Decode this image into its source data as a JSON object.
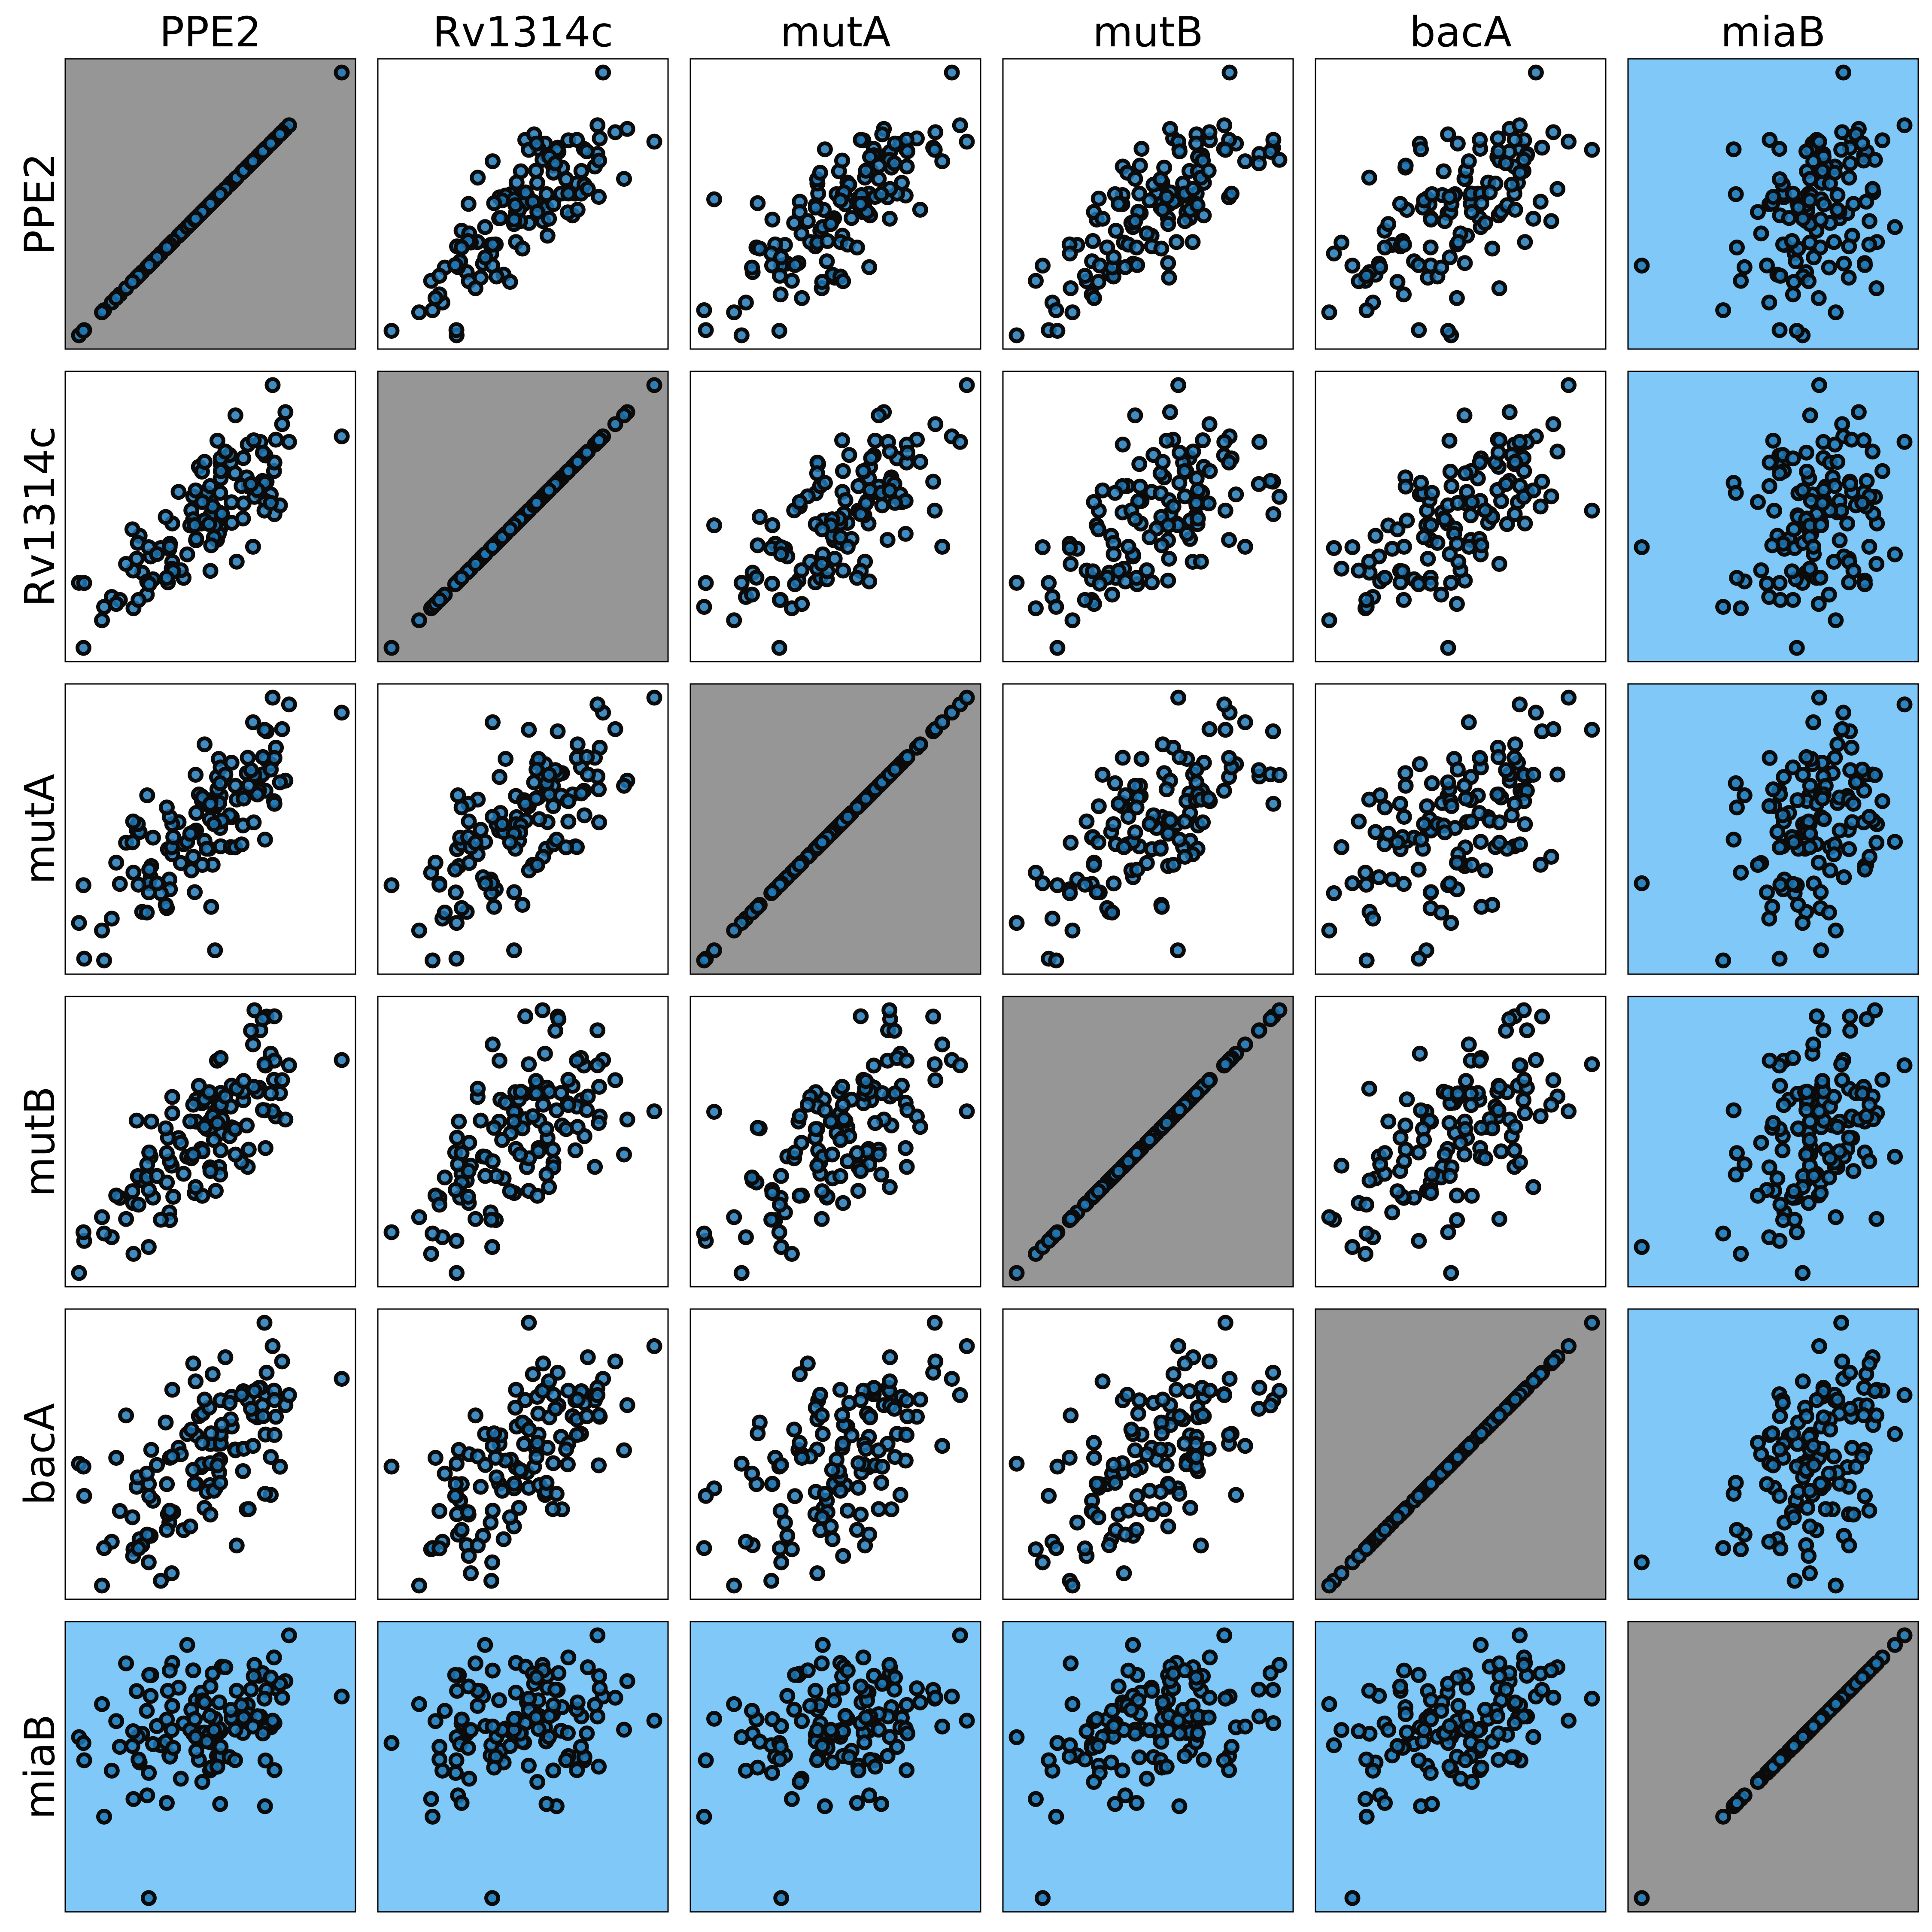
{
  "chart_data": {
    "type": "scatter-matrix",
    "variables": [
      "PPE2",
      "Rv1314c",
      "mutA",
      "mutB",
      "bacA",
      "miaB"
    ],
    "column_labels": [
      "PPE2",
      "Rv1314c",
      "mutA",
      "mutB",
      "bacA",
      "miaB"
    ],
    "row_labels": [
      "PPE2",
      "Rv1314c",
      "mutA",
      "mutB",
      "bacA",
      "miaB"
    ],
    "n_points": 120,
    "axes_ticks": false,
    "grid": false,
    "legend": "none",
    "colors": {
      "marker_fill": "#1f77b4",
      "marker_edge": "#0b0b0b",
      "diagonal_background": "#969696",
      "highlight_background": "#7fc8f8",
      "default_background": "#ffffff"
    },
    "highlighted_variable": "miaB",
    "approx_correlations": [
      [
        1.0,
        0.75,
        0.75,
        0.7,
        0.55,
        0.35
      ],
      [
        0.75,
        1.0,
        0.65,
        0.5,
        0.55,
        0.35
      ],
      [
        0.75,
        0.65,
        1.0,
        0.55,
        0.45,
        0.35
      ],
      [
        0.7,
        0.5,
        0.55,
        1.0,
        0.5,
        0.35
      ],
      [
        0.55,
        0.55,
        0.45,
        0.5,
        1.0,
        0.35
      ],
      [
        0.35,
        0.35,
        0.35,
        0.35,
        0.35,
        1.0
      ]
    ]
  }
}
